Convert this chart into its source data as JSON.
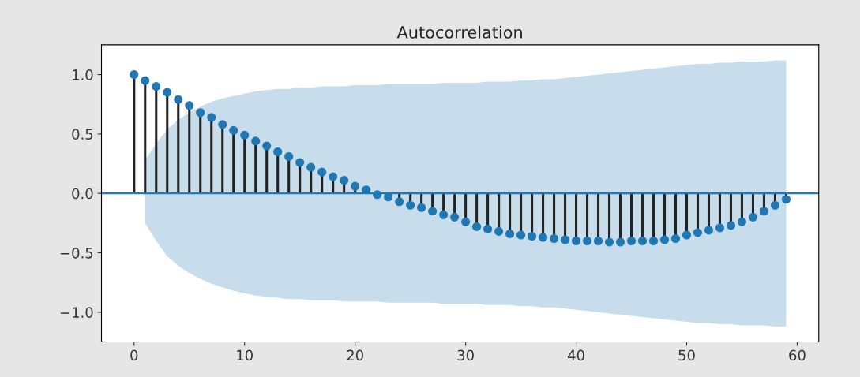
{
  "chart_data": {
    "type": "lollipop",
    "title": "Autocorrelation",
    "marker": "circle",
    "grid": false,
    "xlim": [
      -2.95,
      61.95
    ],
    "xticks": [
      0,
      10,
      20,
      30,
      40,
      50,
      60
    ],
    "ylim": [
      -1.25,
      1.25
    ],
    "yticks": [
      {
        "value": -1.0,
        "label": "−1.0"
      },
      {
        "value": -0.5,
        "label": "−0.5"
      },
      {
        "value": 0.0,
        "label": "0.0"
      },
      {
        "value": 0.5,
        "label": "0.5"
      },
      {
        "value": 1.0,
        "label": "1.0"
      }
    ],
    "ref_lines": [
      {
        "axis": "y",
        "value": 0,
        "color": "#1f77b4"
      }
    ],
    "series": [
      {
        "color": "#1f77b4",
        "x": [
          0,
          1,
          2,
          3,
          4,
          5,
          6,
          7,
          8,
          9,
          10,
          11,
          12,
          13,
          14,
          15,
          16,
          17,
          18,
          19,
          20,
          21,
          22,
          23,
          24,
          25,
          26,
          27,
          28,
          29,
          30,
          31,
          32,
          33,
          34,
          35,
          36,
          37,
          38,
          39,
          40,
          41,
          42,
          43,
          44,
          45,
          46,
          47,
          48,
          49,
          50,
          51,
          52,
          53,
          54,
          55,
          56,
          57,
          58,
          59
        ],
        "values": [
          1.0,
          0.95,
          0.9,
          0.85,
          0.79,
          0.74,
          0.68,
          0.64,
          0.58,
          0.53,
          0.49,
          0.44,
          0.4,
          0.35,
          0.31,
          0.26,
          0.22,
          0.18,
          0.14,
          0.11,
          0.06,
          0.03,
          -0.01,
          -0.03,
          -0.07,
          -0.1,
          -0.12,
          -0.15,
          -0.18,
          -0.2,
          -0.24,
          -0.28,
          -0.3,
          -0.32,
          -0.34,
          -0.35,
          -0.36,
          -0.37,
          -0.38,
          -0.39,
          -0.4,
          -0.4,
          -0.4,
          -0.41,
          -0.41,
          -0.4,
          -0.4,
          -0.4,
          -0.39,
          -0.38,
          -0.35,
          -0.33,
          -0.31,
          -0.29,
          -0.27,
          -0.24,
          -0.2,
          -0.15,
          -0.1,
          -0.05
        ],
        "lower": [
          null,
          -0.25,
          -0.4,
          -0.53,
          -0.61,
          -0.67,
          -0.72,
          -0.76,
          -0.79,
          -0.82,
          -0.84,
          -0.86,
          -0.87,
          -0.88,
          -0.89,
          -0.89,
          -0.9,
          -0.9,
          -0.9,
          -0.91,
          -0.91,
          -0.91,
          -0.91,
          -0.92,
          -0.92,
          -0.92,
          -0.92,
          -0.92,
          -0.93,
          -0.93,
          -0.93,
          -0.93,
          -0.94,
          -0.94,
          -0.94,
          -0.95,
          -0.95,
          -0.96,
          -0.96,
          -0.97,
          -0.98,
          -0.99,
          -1.0,
          -1.01,
          -1.02,
          -1.03,
          -1.04,
          -1.05,
          -1.06,
          -1.07,
          -1.08,
          -1.09,
          -1.09,
          -1.1,
          -1.1,
          -1.11,
          -1.11,
          -1.11,
          -1.12,
          -1.12
        ],
        "upper": [
          null,
          0.28,
          0.42,
          0.54,
          0.62,
          0.68,
          0.73,
          0.77,
          0.8,
          0.82,
          0.84,
          0.86,
          0.87,
          0.88,
          0.88,
          0.89,
          0.89,
          0.9,
          0.9,
          0.9,
          0.91,
          0.91,
          0.91,
          0.92,
          0.92,
          0.92,
          0.92,
          0.92,
          0.93,
          0.93,
          0.93,
          0.93,
          0.94,
          0.94,
          0.94,
          0.95,
          0.95,
          0.96,
          0.96,
          0.97,
          0.98,
          0.99,
          1.0,
          1.01,
          1.02,
          1.03,
          1.04,
          1.05,
          1.06,
          1.07,
          1.08,
          1.09,
          1.09,
          1.1,
          1.1,
          1.11,
          1.11,
          1.11,
          1.12,
          1.12
        ]
      }
    ]
  }
}
